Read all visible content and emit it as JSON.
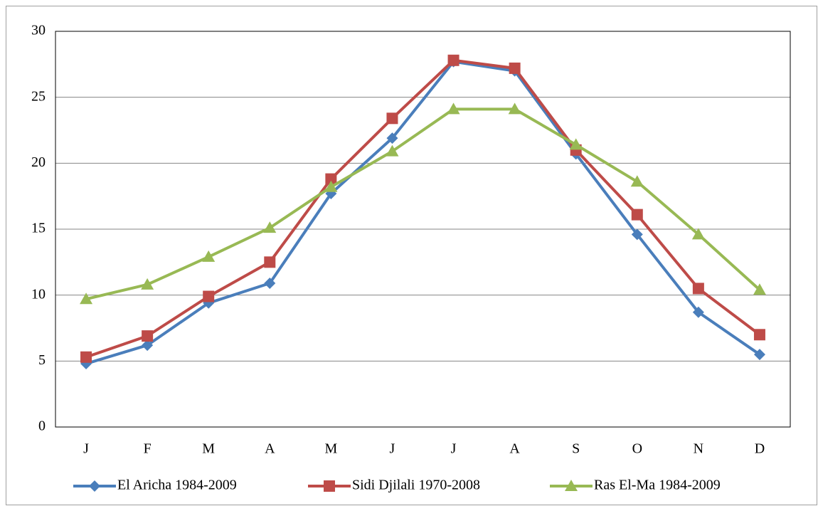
{
  "chart_data": {
    "type": "line",
    "categories": [
      "J",
      "F",
      "M",
      "A",
      "M",
      "J",
      "J",
      "A",
      "S",
      "O",
      "N",
      "D"
    ],
    "series": [
      {
        "name": "El Aricha 1984-2009",
        "color": "#4a7ebb",
        "marker": "diamond",
        "values": [
          4.8,
          6.2,
          9.4,
          10.9,
          17.7,
          21.9,
          27.7,
          27.0,
          20.7,
          14.6,
          8.7,
          5.5
        ]
      },
      {
        "name": "Sidi Djilali 1970-2008",
        "color": "#be4b48",
        "marker": "square",
        "values": [
          5.3,
          6.9,
          9.9,
          12.5,
          18.8,
          23.4,
          27.8,
          27.2,
          21.0,
          16.1,
          10.5,
          7.0
        ]
      },
      {
        "name": "Ras El-Ma 1984-2009",
        "color": "#98b954",
        "marker": "triangle",
        "values": [
          9.7,
          10.8,
          12.9,
          15.1,
          18.2,
          20.9,
          24.1,
          24.1,
          21.4,
          18.6,
          14.6,
          10.4
        ]
      }
    ],
    "ylim": [
      0,
      30
    ],
    "yticks": [
      0,
      5,
      10,
      15,
      20,
      25,
      30
    ],
    "grid": true,
    "legend": "bottom"
  }
}
